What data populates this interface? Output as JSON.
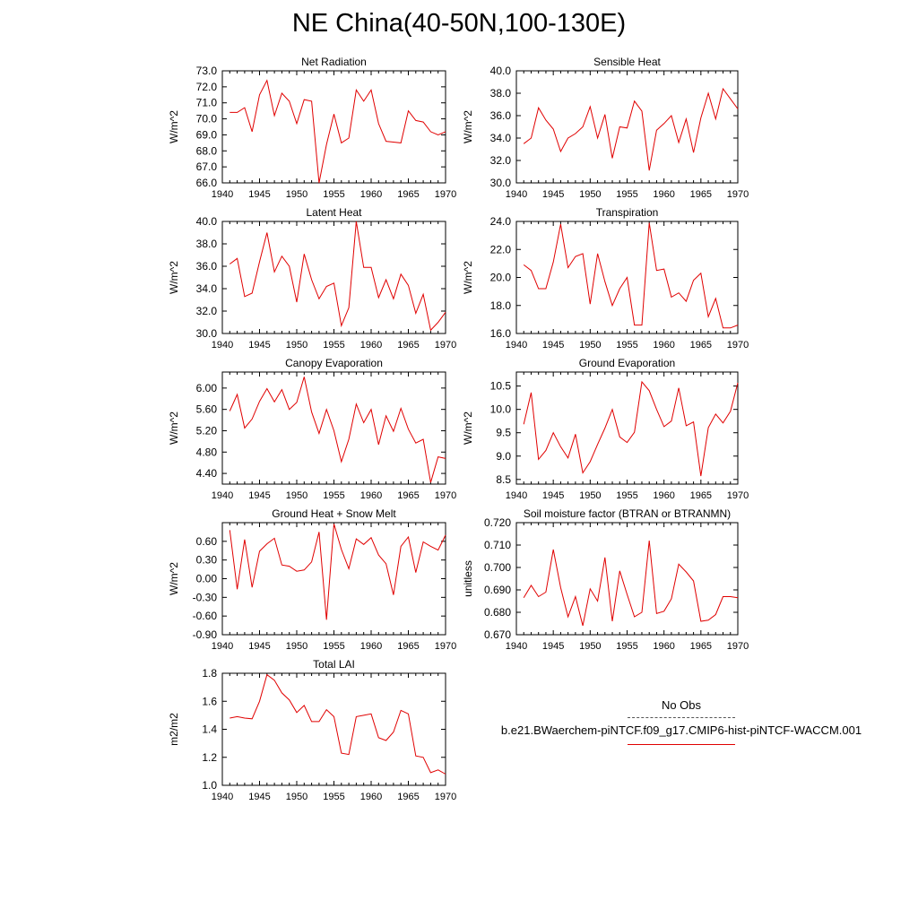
{
  "title": "NE China(40-50N,100-130E)",
  "legend": {
    "obs_label": "No Obs",
    "case_label": "b.e21.BWaerchem-piNTCF.f09_g17.CMIP6-hist-piNTCF-WACCM.001",
    "case_color": "#e00000"
  },
  "chart_data": [
    {
      "type": "line",
      "title": "Net Radiation",
      "ylabel": "W/m^2",
      "xlim": [
        1940,
        1970
      ],
      "ylim": [
        66.0,
        73.0
      ],
      "yticks": [
        "66.0",
        "67.0",
        "68.0",
        "69.0",
        "70.0",
        "71.0",
        "72.0",
        "73.0"
      ],
      "xticks": [
        "1940",
        "1945",
        "1950",
        "1955",
        "1960",
        "1965",
        "1970"
      ],
      "x": [
        1941,
        1942,
        1943,
        1944,
        1945,
        1946,
        1947,
        1948,
        1949,
        1950,
        1951,
        1952,
        1953,
        1954,
        1955,
        1956,
        1957,
        1958,
        1959,
        1960,
        1961,
        1962,
        1963,
        1964,
        1965,
        1966,
        1967,
        1968,
        1969,
        1970
      ],
      "values": [
        70.4,
        70.4,
        70.7,
        69.2,
        71.5,
        72.4,
        70.2,
        71.6,
        71.1,
        69.7,
        71.2,
        71.1,
        66.0,
        68.4,
        70.3,
        68.5,
        68.8,
        71.8,
        71.1,
        71.8,
        69.7,
        68.6,
        68.55,
        68.5,
        70.5,
        69.9,
        69.8,
        69.2,
        69.0,
        69.2
      ],
      "color": "#e00000"
    },
    {
      "type": "line",
      "title": "Sensible Heat",
      "ylabel": "W/m^2",
      "xlim": [
        1940,
        1970
      ],
      "ylim": [
        30.0,
        40.0
      ],
      "yticks": [
        "30.0",
        "32.0",
        "34.0",
        "36.0",
        "38.0",
        "40.0"
      ],
      "xticks": [
        "1940",
        "1945",
        "1950",
        "1955",
        "1960",
        "1965",
        "1970"
      ],
      "x": [
        1941,
        1942,
        1943,
        1944,
        1945,
        1946,
        1947,
        1948,
        1949,
        1950,
        1951,
        1952,
        1953,
        1954,
        1955,
        1956,
        1957,
        1958,
        1959,
        1960,
        1961,
        1962,
        1963,
        1964,
        1965,
        1966,
        1967,
        1968,
        1969,
        1970
      ],
      "values": [
        33.5,
        34.0,
        36.7,
        35.6,
        34.8,
        32.8,
        34.0,
        34.4,
        35.0,
        36.8,
        34.0,
        36.1,
        32.2,
        35.0,
        34.9,
        37.3,
        36.4,
        31.1,
        34.7,
        35.3,
        36.0,
        33.6,
        35.7,
        32.7,
        35.8,
        38.0,
        35.7,
        38.4,
        37.5,
        36.6
      ],
      "color": "#e00000"
    },
    {
      "type": "line",
      "title": "Latent Heat",
      "ylabel": "W/m^2",
      "xlim": [
        1940,
        1970
      ],
      "ylim": [
        30.0,
        40.0
      ],
      "yticks": [
        "30.0",
        "32.0",
        "34.0",
        "36.0",
        "38.0",
        "40.0"
      ],
      "xticks": [
        "1940",
        "1945",
        "1950",
        "1955",
        "1960",
        "1965",
        "1970"
      ],
      "x": [
        1941,
        1942,
        1943,
        1944,
        1945,
        1946,
        1947,
        1948,
        1949,
        1950,
        1951,
        1952,
        1953,
        1954,
        1955,
        1956,
        1957,
        1958,
        1959,
        1960,
        1961,
        1962,
        1963,
        1964,
        1965,
        1966,
        1967,
        1968,
        1969,
        1970
      ],
      "values": [
        36.2,
        36.7,
        33.3,
        33.6,
        36.4,
        39.0,
        35.5,
        36.9,
        36.0,
        32.8,
        37.1,
        34.8,
        33.1,
        34.2,
        34.5,
        30.7,
        32.3,
        40.0,
        35.9,
        35.9,
        33.2,
        34.8,
        33.1,
        35.3,
        34.3,
        31.8,
        33.5,
        30.3,
        31.0,
        31.9
      ],
      "color": "#e00000"
    },
    {
      "type": "line",
      "title": "Transpiration",
      "ylabel": "W/m^2",
      "xlim": [
        1940,
        1970
      ],
      "ylim": [
        16.0,
        24.0
      ],
      "yticks": [
        "16.0",
        "18.0",
        "20.0",
        "22.0",
        "24.0"
      ],
      "xticks": [
        "1940",
        "1945",
        "1950",
        "1955",
        "1960",
        "1965",
        "1970"
      ],
      "x": [
        1941,
        1942,
        1943,
        1944,
        1945,
        1946,
        1947,
        1948,
        1949,
        1950,
        1951,
        1952,
        1953,
        1954,
        1955,
        1956,
        1957,
        1958,
        1959,
        1960,
        1961,
        1962,
        1963,
        1964,
        1965,
        1966,
        1967,
        1968,
        1969,
        1970
      ],
      "values": [
        20.9,
        20.5,
        19.2,
        19.2,
        21.1,
        23.8,
        20.7,
        21.5,
        21.7,
        18.1,
        21.7,
        19.7,
        18.0,
        19.2,
        20.0,
        16.6,
        16.6,
        23.9,
        20.5,
        20.6,
        18.6,
        18.9,
        18.3,
        19.8,
        20.3,
        17.2,
        18.5,
        16.4,
        16.4,
        16.6
      ],
      "color": "#e00000"
    },
    {
      "type": "line",
      "title": "Canopy Evaporation",
      "ylabel": "W/m^2",
      "xlim": [
        1940,
        1970
      ],
      "ylim": [
        4.2,
        6.3
      ],
      "yticks": [
        "4.40",
        "4.80",
        "5.20",
        "5.60",
        "6.00"
      ],
      "xticks": [
        "1940",
        "1945",
        "1950",
        "1955",
        "1960",
        "1965",
        "1970"
      ],
      "x": [
        1941,
        1942,
        1943,
        1944,
        1945,
        1946,
        1947,
        1948,
        1949,
        1950,
        1951,
        1952,
        1953,
        1954,
        1955,
        1956,
        1957,
        1958,
        1959,
        1960,
        1961,
        1962,
        1963,
        1964,
        1965,
        1966,
        1967,
        1968,
        1969,
        1970
      ],
      "values": [
        5.57,
        5.88,
        5.25,
        5.42,
        5.75,
        5.99,
        5.74,
        5.97,
        5.6,
        5.73,
        6.21,
        5.55,
        5.15,
        5.6,
        5.2,
        4.62,
        5.04,
        5.7,
        5.35,
        5.6,
        4.94,
        5.48,
        5.19,
        5.62,
        5.23,
        4.97,
        5.04,
        4.23,
        4.71,
        4.68
      ],
      "color": "#e00000"
    },
    {
      "type": "line",
      "title": "Ground Evaporation",
      "ylabel": "W/m^2",
      "xlim": [
        1940,
        1970
      ],
      "ylim": [
        8.4,
        10.8
      ],
      "yticks": [
        "8.5",
        "9.0",
        "9.5",
        "10.0",
        "10.5"
      ],
      "xticks": [
        "1940",
        "1945",
        "1950",
        "1955",
        "1960",
        "1965",
        "1970"
      ],
      "x": [
        1941,
        1942,
        1943,
        1944,
        1945,
        1946,
        1947,
        1948,
        1949,
        1950,
        1951,
        1952,
        1953,
        1954,
        1955,
        1956,
        1957,
        1958,
        1959,
        1960,
        1961,
        1962,
        1963,
        1964,
        1965,
        1966,
        1967,
        1968,
        1969,
        1970
      ],
      "values": [
        9.68,
        10.36,
        8.93,
        9.12,
        9.5,
        9.2,
        8.96,
        9.47,
        8.64,
        8.88,
        9.25,
        9.6,
        10.0,
        9.41,
        9.29,
        9.51,
        10.59,
        10.4,
        10.0,
        9.63,
        9.75,
        10.46,
        9.65,
        9.73,
        8.57,
        9.61,
        9.9,
        9.71,
        9.96,
        10.57
      ],
      "color": "#e00000"
    },
    {
      "type": "line",
      "title": "Ground Heat + Snow Melt",
      "ylabel": "W/m^2",
      "xlim": [
        1940,
        1970
      ],
      "ylim": [
        -0.9,
        0.9
      ],
      "yticks": [
        "-0.90",
        "-0.60",
        "-0.30",
        "0.00",
        "0.30",
        "0.60"
      ],
      "xticks": [
        "1940",
        "1945",
        "1950",
        "1955",
        "1960",
        "1965",
        "1970"
      ],
      "x": [
        1941,
        1942,
        1943,
        1944,
        1945,
        1946,
        1947,
        1948,
        1949,
        1950,
        1951,
        1952,
        1953,
        1954,
        1955,
        1956,
        1957,
        1958,
        1959,
        1960,
        1961,
        1962,
        1963,
        1964,
        1965,
        1966,
        1967,
        1968,
        1969,
        1970
      ],
      "values": [
        0.78,
        -0.17,
        0.63,
        -0.14,
        0.44,
        0.56,
        0.65,
        0.22,
        0.2,
        0.12,
        0.14,
        0.27,
        0.75,
        -0.66,
        0.88,
        0.47,
        0.16,
        0.64,
        0.55,
        0.66,
        0.38,
        0.24,
        -0.26,
        0.52,
        0.67,
        0.1,
        0.59,
        0.52,
        0.46,
        0.7
      ],
      "color": "#e00000"
    },
    {
      "type": "line",
      "title": "Soil moisture factor (BTRAN or BTRANMN)",
      "ylabel": "unitless",
      "xlim": [
        1940,
        1970
      ],
      "ylim": [
        0.67,
        0.72
      ],
      "yticks": [
        "0.670",
        "0.680",
        "0.690",
        "0.700",
        "0.710",
        "0.720"
      ],
      "xticks": [
        "1940",
        "1945",
        "1950",
        "1955",
        "1960",
        "1965",
        "1970"
      ],
      "x": [
        1941,
        1942,
        1943,
        1944,
        1945,
        1946,
        1947,
        1948,
        1949,
        1950,
        1951,
        1952,
        1953,
        1954,
        1955,
        1956,
        1957,
        1958,
        1959,
        1960,
        1961,
        1962,
        1963,
        1964,
        1965,
        1966,
        1967,
        1968,
        1969,
        1970
      ],
      "values": [
        0.6865,
        0.692,
        0.687,
        0.689,
        0.708,
        0.691,
        0.678,
        0.687,
        0.674,
        0.6905,
        0.685,
        0.7045,
        0.676,
        0.6985,
        0.688,
        0.678,
        0.68,
        0.712,
        0.6795,
        0.6805,
        0.686,
        0.7015,
        0.698,
        0.694,
        0.676,
        0.6765,
        0.679,
        0.687,
        0.687,
        0.6865
      ],
      "color": "#e00000"
    },
    {
      "type": "line",
      "title": "Total LAI",
      "ylabel": "m2/m2",
      "xlim": [
        1940,
        1970
      ],
      "ylim": [
        1.0,
        1.8
      ],
      "yticks": [
        "1.0",
        "1.2",
        "1.4",
        "1.6",
        "1.8"
      ],
      "xticks": [
        "1940",
        "1945",
        "1950",
        "1955",
        "1960",
        "1965",
        "1970"
      ],
      "x": [
        1941,
        1942,
        1943,
        1944,
        1945,
        1946,
        1947,
        1948,
        1949,
        1950,
        1951,
        1952,
        1953,
        1954,
        1955,
        1956,
        1957,
        1958,
        1959,
        1960,
        1961,
        1962,
        1963,
        1964,
        1965,
        1966,
        1967,
        1968,
        1969,
        1970
      ],
      "values": [
        1.48,
        1.49,
        1.48,
        1.475,
        1.6,
        1.79,
        1.75,
        1.66,
        1.61,
        1.52,
        1.57,
        1.455,
        1.455,
        1.54,
        1.49,
        1.23,
        1.22,
        1.49,
        1.5,
        1.51,
        1.34,
        1.32,
        1.38,
        1.535,
        1.51,
        1.21,
        1.2,
        1.09,
        1.11,
        1.08
      ],
      "color": "#e00000"
    }
  ]
}
